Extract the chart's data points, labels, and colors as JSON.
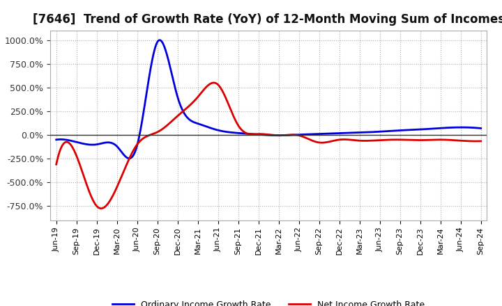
{
  "title": "[7646]  Trend of Growth Rate (YoY) of 12-Month Moving Sum of Incomes",
  "title_fontsize": 12,
  "ylim": [
    -900,
    1100
  ],
  "yticks": [
    -750,
    -500,
    -250,
    0,
    250,
    500,
    750,
    1000
  ],
  "background_color": "#ffffff",
  "grid_color": "#999999",
  "line1_color": "#0000dd",
  "line2_color": "#dd0000",
  "line1_label": "Ordinary Income Growth Rate",
  "line2_label": "Net Income Growth Rate",
  "x_labels": [
    "Jun-19",
    "Sep-19",
    "Dec-19",
    "Mar-20",
    "Jun-20",
    "Sep-20",
    "Dec-20",
    "Mar-21",
    "Jun-21",
    "Sep-21",
    "Dec-21",
    "Mar-22",
    "Jun-22",
    "Sep-22",
    "Dec-22",
    "Mar-23",
    "Jun-23",
    "Sep-23",
    "Dec-23",
    "Mar-24",
    "Jun-24",
    "Sep-24"
  ],
  "ordinary_income_growth": [
    -50,
    -75,
    -100,
    -120,
    -110,
    980,
    400,
    120,
    50,
    20,
    5,
    -5,
    3,
    10,
    18,
    25,
    35,
    48,
    58,
    72,
    80,
    70
  ],
  "net_income_growth": [
    -310,
    -220,
    -750,
    -550,
    -100,
    30,
    200,
    400,
    530,
    100,
    10,
    -5,
    -5,
    -80,
    -50,
    -60,
    -55,
    -50,
    -55,
    -50,
    -60,
    -65
  ]
}
